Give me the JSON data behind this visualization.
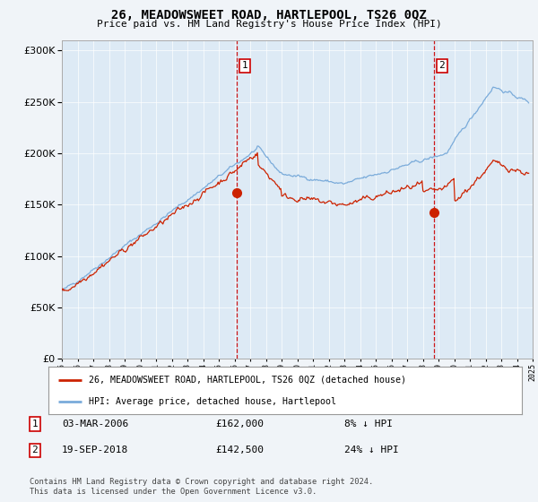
{
  "title": "26, MEADOWSWEET ROAD, HARTLEPOOL, TS26 0QZ",
  "subtitle": "Price paid vs. HM Land Registry's House Price Index (HPI)",
  "legend_line1": "26, MEADOWSWEET ROAD, HARTLEPOOL, TS26 0QZ (detached house)",
  "legend_line2": "HPI: Average price, detached house, Hartlepool",
  "table_rows": [
    {
      "num": "1",
      "date": "03-MAR-2006",
      "price": "£162,000",
      "hpi": "8% ↓ HPI"
    },
    {
      "num": "2",
      "date": "19-SEP-2018",
      "price": "£142,500",
      "hpi": "24% ↓ HPI"
    }
  ],
  "footer": "Contains HM Land Registry data © Crown copyright and database right 2024.\nThis data is licensed under the Open Government Licence v3.0.",
  "sale1_year": 2006.17,
  "sale1_price": 162000,
  "sale2_year": 2018.72,
  "sale2_price": 142500,
  "hpi_color": "#7aabda",
  "price_color": "#cc2200",
  "vline_color": "#cc0000",
  "background_color": "#f0f4f8",
  "plot_bg": "#ddeaf5",
  "ylim": [
    0,
    310000
  ],
  "yticks": [
    0,
    50000,
    100000,
    150000,
    200000,
    250000,
    300000
  ],
  "xmin": 1995,
  "xmax": 2025
}
